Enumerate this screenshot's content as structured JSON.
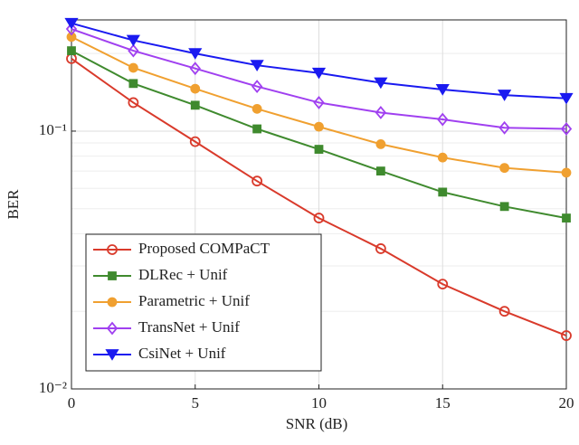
{
  "chart_data": {
    "type": "line",
    "x_label": "SNR (dB)",
    "y_label": "BER",
    "log_y": true,
    "grid": true,
    "legend": "lower left",
    "x": [
      0,
      2.5,
      5,
      7.5,
      10,
      12.5,
      15,
      17.5,
      20
    ],
    "xlim": [
      0,
      20
    ],
    "xticks": [
      0,
      5,
      10,
      15,
      20
    ],
    "ylim": [
      0.01,
      0.27
    ],
    "yticks": [
      {
        "value": 0.01,
        "label": "10⁻²"
      },
      {
        "value": 0.1,
        "label": "10⁻¹"
      }
    ],
    "series": [
      {
        "name": "Proposed COMPaCT",
        "color": "#d93a2b",
        "marker": "circle",
        "values": [
          0.191,
          0.129,
          0.091,
          0.064,
          0.046,
          0.035,
          0.0255,
          0.02,
          0.0161
        ]
      },
      {
        "name": "DLRec + Unif",
        "color": "#3f8a2e",
        "marker": "square",
        "values": [
          0.205,
          0.153,
          0.126,
          0.102,
          0.085,
          0.07,
          0.058,
          0.051,
          0.046
        ]
      },
      {
        "name": "Parametric + Unif",
        "color": "#f0a030",
        "marker": "dot",
        "values": [
          0.232,
          0.176,
          0.146,
          0.122,
          0.104,
          0.089,
          0.079,
          0.072,
          0.069
        ]
      },
      {
        "name": "TransNet + Unif",
        "color": "#a040f0",
        "marker": "diamond",
        "values": [
          0.249,
          0.205,
          0.175,
          0.149,
          0.129,
          0.118,
          0.111,
          0.103,
          0.102
        ]
      },
      {
        "name": "CsiNet + Unif",
        "color": "#1a1af0",
        "marker": "triangle-down",
        "values": [
          0.262,
          0.225,
          0.2,
          0.18,
          0.168,
          0.154,
          0.145,
          0.138,
          0.134
        ]
      }
    ]
  }
}
